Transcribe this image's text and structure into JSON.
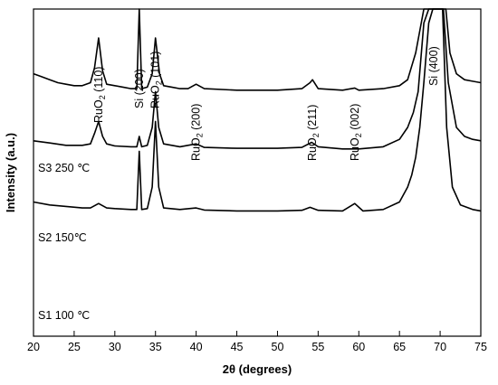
{
  "chart_data": {
    "type": "line",
    "title": "",
    "xlabel": "2θ (degrees)",
    "ylabel": "Intensity (a.u.)",
    "xlim": [
      20,
      75
    ],
    "xticks": [
      "20",
      "25",
      "30",
      "35",
      "40",
      "45",
      "50",
      "55",
      "60",
      "65",
      "70",
      "75"
    ],
    "y_ticks_shown": false,
    "grid": false,
    "peak_labels": [
      {
        "main": "RuO",
        "sub": "2",
        "hkl": " (110)",
        "x": 28.0
      },
      {
        "main": "Si (200)",
        "sub": "",
        "hkl": "",
        "x": 33.0
      },
      {
        "main": "RuO",
        "sub": "2",
        "hkl": " (101)",
        "x": 35.0
      },
      {
        "main": "RuO",
        "sub": "2",
        "hkl": " (200)",
        "x": 40.0
      },
      {
        "main": "RuO",
        "sub": "2",
        "hkl": " (211)",
        "x": 54.3
      },
      {
        "main": "RuO",
        "sub": "2",
        "hkl": " (002)",
        "x": 59.5
      },
      {
        "main": "Si (400)",
        "sub": "",
        "hkl": "",
        "x": 69.2
      }
    ],
    "series": [
      {
        "name": "S3 250 ℃",
        "points": [
          [
            20,
            0.88
          ],
          [
            21,
            0.87
          ],
          [
            22,
            0.86
          ],
          [
            23,
            0.85
          ],
          [
            24,
            0.845
          ],
          [
            25,
            0.84
          ],
          [
            26,
            0.84
          ],
          [
            27,
            0.85
          ],
          [
            27.5,
            0.9
          ],
          [
            28,
            1.0
          ],
          [
            28.5,
            0.89
          ],
          [
            29,
            0.845
          ],
          [
            30,
            0.84
          ],
          [
            31,
            0.835
          ],
          [
            32,
            0.83
          ],
          [
            32.7,
            0.83
          ],
          [
            33,
            1.15
          ],
          [
            33.3,
            0.83
          ],
          [
            34,
            0.835
          ],
          [
            34.6,
            0.88
          ],
          [
            35,
            1.0
          ],
          [
            35.5,
            0.88
          ],
          [
            36,
            0.84
          ],
          [
            37,
            0.835
          ],
          [
            38,
            0.83
          ],
          [
            39,
            0.83
          ],
          [
            40,
            0.845
          ],
          [
            41,
            0.83
          ],
          [
            45,
            0.825
          ],
          [
            50,
            0.825
          ],
          [
            53,
            0.83
          ],
          [
            54,
            0.85
          ],
          [
            54.3,
            0.86
          ],
          [
            55,
            0.83
          ],
          [
            58,
            0.825
          ],
          [
            59.5,
            0.832
          ],
          [
            60,
            0.825
          ],
          [
            63,
            0.83
          ],
          [
            65,
            0.84
          ],
          [
            66,
            0.86
          ],
          [
            67,
            0.95
          ],
          [
            68,
            1.3
          ],
          [
            68.6,
            1.6
          ],
          [
            69.2,
            1.6
          ],
          [
            69.5,
            1.4
          ],
          [
            69.8,
            1.6
          ],
          [
            70.3,
            1.6
          ],
          [
            70.7,
            1.1
          ],
          [
            71.2,
            0.95
          ],
          [
            72,
            0.88
          ],
          [
            73,
            0.86
          ],
          [
            74,
            0.855
          ],
          [
            75,
            0.85
          ]
        ]
      },
      {
        "name": "S2 150℃",
        "points": [
          [
            20,
            0.655
          ],
          [
            22,
            0.648
          ],
          [
            24,
            0.64
          ],
          [
            26,
            0.64
          ],
          [
            27,
            0.645
          ],
          [
            27.5,
            0.68
          ],
          [
            28,
            0.72
          ],
          [
            28.5,
            0.67
          ],
          [
            29,
            0.645
          ],
          [
            30,
            0.638
          ],
          [
            32,
            0.635
          ],
          [
            32.7,
            0.635
          ],
          [
            33,
            0.67
          ],
          [
            33.3,
            0.635
          ],
          [
            34,
            0.64
          ],
          [
            34.6,
            0.7
          ],
          [
            35,
            0.82
          ],
          [
            35.4,
            0.7
          ],
          [
            36,
            0.645
          ],
          [
            38,
            0.635
          ],
          [
            40,
            0.645
          ],
          [
            41,
            0.633
          ],
          [
            45,
            0.63
          ],
          [
            50,
            0.63
          ],
          [
            53,
            0.633
          ],
          [
            54.2,
            0.65
          ],
          [
            55,
            0.635
          ],
          [
            58,
            0.628
          ],
          [
            60,
            0.628
          ],
          [
            63,
            0.635
          ],
          [
            65,
            0.66
          ],
          [
            66,
            0.7
          ],
          [
            66.7,
            0.75
          ],
          [
            67.3,
            0.82
          ],
          [
            68,
            1.05
          ],
          [
            68.6,
            1.3
          ],
          [
            69.2,
            1.55
          ],
          [
            69.5,
            1.6
          ],
          [
            70,
            1.6
          ],
          [
            70.4,
            1.3
          ],
          [
            71,
            0.85
          ],
          [
            72,
            0.7
          ],
          [
            73,
            0.67
          ],
          [
            74,
            0.66
          ],
          [
            75,
            0.655
          ]
        ]
      },
      {
        "name": "S1 100 ℃",
        "points": [
          [
            20,
            0.45
          ],
          [
            22,
            0.44
          ],
          [
            24,
            0.435
          ],
          [
            26,
            0.43
          ],
          [
            27,
            0.43
          ],
          [
            28,
            0.445
          ],
          [
            29,
            0.43
          ],
          [
            30,
            0.428
          ],
          [
            32,
            0.425
          ],
          [
            32.7,
            0.425
          ],
          [
            33,
            0.62
          ],
          [
            33.3,
            0.425
          ],
          [
            34,
            0.428
          ],
          [
            34.6,
            0.5
          ],
          [
            35,
            0.72
          ],
          [
            35.4,
            0.5
          ],
          [
            36,
            0.43
          ],
          [
            38,
            0.425
          ],
          [
            40,
            0.43
          ],
          [
            41,
            0.423
          ],
          [
            45,
            0.42
          ],
          [
            50,
            0.42
          ],
          [
            53,
            0.422
          ],
          [
            54,
            0.432
          ],
          [
            55,
            0.422
          ],
          [
            58,
            0.42
          ],
          [
            59.5,
            0.445
          ],
          [
            60.5,
            0.42
          ],
          [
            63,
            0.425
          ],
          [
            65,
            0.45
          ],
          [
            66,
            0.5
          ],
          [
            66.5,
            0.54
          ],
          [
            67,
            0.6
          ],
          [
            67.5,
            0.7
          ],
          [
            68,
            0.85
          ],
          [
            68.6,
            1.05
          ],
          [
            69.1,
            1.25
          ],
          [
            69.6,
            1.4
          ],
          [
            70,
            1.5
          ],
          [
            70.3,
            1.2
          ],
          [
            70.8,
            0.7
          ],
          [
            71.5,
            0.5
          ],
          [
            72.5,
            0.44
          ],
          [
            74,
            0.425
          ],
          [
            75,
            0.42
          ]
        ]
      }
    ]
  }
}
